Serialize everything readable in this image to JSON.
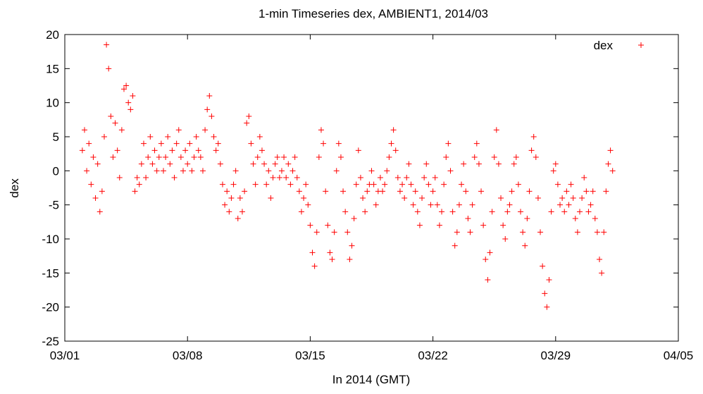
{
  "chart_data": {
    "type": "scatter",
    "title": "1-min Timeseries dex, AMBIENT1, 2014/03",
    "xlabel": "In 2014 (GMT)",
    "ylabel": "dex",
    "xlim": [
      "2014-03-01",
      "2014-04-05"
    ],
    "ylim": [
      -25,
      20
    ],
    "xticks": [
      {
        "date": "2014-03-01",
        "label": "03/01"
      },
      {
        "date": "2014-03-08",
        "label": "03/08"
      },
      {
        "date": "2014-03-15",
        "label": "03/15"
      },
      {
        "date": "2014-03-22",
        "label": "03/22"
      },
      {
        "date": "2014-03-29",
        "label": "03/29"
      },
      {
        "date": "2014-04-05",
        "label": "04/05"
      }
    ],
    "yticks": [
      20,
      15,
      10,
      5,
      0,
      -5,
      -10,
      -15,
      -20,
      -25
    ],
    "grid": false,
    "legend": "top-right",
    "series": [
      {
        "name": "dex",
        "color": "#ff0000",
        "marker": "plus",
        "points": [
          [
            "2014-03-02 00:00",
            3
          ],
          [
            "2014-03-02 03:00",
            6
          ],
          [
            "2014-03-02 06:00",
            0
          ],
          [
            "2014-03-02 09:00",
            4
          ],
          [
            "2014-03-02 12:00",
            -2
          ],
          [
            "2014-03-02 15:00",
            2
          ],
          [
            "2014-03-02 18:00",
            -4
          ],
          [
            "2014-03-02 21:00",
            1
          ],
          [
            "2014-03-03 00:00",
            -6
          ],
          [
            "2014-03-03 03:00",
            -3
          ],
          [
            "2014-03-03 06:00",
            5
          ],
          [
            "2014-03-03 09:00",
            18.5
          ],
          [
            "2014-03-03 12:00",
            15
          ],
          [
            "2014-03-03 15:00",
            8
          ],
          [
            "2014-03-03 18:00",
            2
          ],
          [
            "2014-03-03 21:00",
            7
          ],
          [
            "2014-03-04 00:00",
            3
          ],
          [
            "2014-03-04 03:00",
            -1
          ],
          [
            "2014-03-04 06:00",
            6
          ],
          [
            "2014-03-04 09:00",
            12
          ],
          [
            "2014-03-04 12:00",
            12.5
          ],
          [
            "2014-03-04 15:00",
            10
          ],
          [
            "2014-03-04 18:00",
            9
          ],
          [
            "2014-03-04 21:00",
            11
          ],
          [
            "2014-03-05 00:00",
            -3
          ],
          [
            "2014-03-05 03:00",
            -1
          ],
          [
            "2014-03-05 06:00",
            -2
          ],
          [
            "2014-03-05 09:00",
            1
          ],
          [
            "2014-03-05 12:00",
            4
          ],
          [
            "2014-03-05 15:00",
            -1
          ],
          [
            "2014-03-05 18:00",
            2
          ],
          [
            "2014-03-05 21:00",
            5
          ],
          [
            "2014-03-06 00:00",
            1
          ],
          [
            "2014-03-06 03:00",
            3
          ],
          [
            "2014-03-06 06:00",
            0
          ],
          [
            "2014-03-06 09:00",
            2
          ],
          [
            "2014-03-06 12:00",
            4
          ],
          [
            "2014-03-06 15:00",
            0
          ],
          [
            "2014-03-06 18:00",
            2
          ],
          [
            "2014-03-06 21:00",
            5
          ],
          [
            "2014-03-07 00:00",
            1
          ],
          [
            "2014-03-07 03:00",
            3
          ],
          [
            "2014-03-07 06:00",
            -1
          ],
          [
            "2014-03-07 09:00",
            4
          ],
          [
            "2014-03-07 12:00",
            6
          ],
          [
            "2014-03-07 15:00",
            2
          ],
          [
            "2014-03-07 18:00",
            0
          ],
          [
            "2014-03-07 21:00",
            3
          ],
          [
            "2014-03-08 00:00",
            1
          ],
          [
            "2014-03-08 03:00",
            4
          ],
          [
            "2014-03-08 06:00",
            0
          ],
          [
            "2014-03-08 09:00",
            2
          ],
          [
            "2014-03-08 12:00",
            5
          ],
          [
            "2014-03-08 15:00",
            3
          ],
          [
            "2014-03-08 18:00",
            2
          ],
          [
            "2014-03-08 21:00",
            0
          ],
          [
            "2014-03-09 00:00",
            6
          ],
          [
            "2014-03-09 03:00",
            9
          ],
          [
            "2014-03-09 06:00",
            11
          ],
          [
            "2014-03-09 09:00",
            8
          ],
          [
            "2014-03-09 12:00",
            5
          ],
          [
            "2014-03-09 15:00",
            3
          ],
          [
            "2014-03-09 18:00",
            4
          ],
          [
            "2014-03-09 21:00",
            1
          ],
          [
            "2014-03-10 00:00",
            -2
          ],
          [
            "2014-03-10 03:00",
            -5
          ],
          [
            "2014-03-10 06:00",
            -3
          ],
          [
            "2014-03-10 09:00",
            -6
          ],
          [
            "2014-03-10 12:00",
            -4
          ],
          [
            "2014-03-10 15:00",
            -2
          ],
          [
            "2014-03-10 18:00",
            0
          ],
          [
            "2014-03-10 21:00",
            -7
          ],
          [
            "2014-03-11 00:00",
            -4
          ],
          [
            "2014-03-11 03:00",
            -6
          ],
          [
            "2014-03-11 06:00",
            -3
          ],
          [
            "2014-03-11 09:00",
            7
          ],
          [
            "2014-03-11 12:00",
            8
          ],
          [
            "2014-03-11 15:00",
            4
          ],
          [
            "2014-03-11 18:00",
            1
          ],
          [
            "2014-03-11 21:00",
            -2
          ],
          [
            "2014-03-12 00:00",
            2
          ],
          [
            "2014-03-12 03:00",
            5
          ],
          [
            "2014-03-12 06:00",
            3
          ],
          [
            "2014-03-12 09:00",
            1
          ],
          [
            "2014-03-12 12:00",
            -2
          ],
          [
            "2014-03-12 15:00",
            0
          ],
          [
            "2014-03-12 18:00",
            -4
          ],
          [
            "2014-03-12 21:00",
            -1
          ],
          [
            "2014-03-13 00:00",
            1
          ],
          [
            "2014-03-13 03:00",
            2
          ],
          [
            "2014-03-13 06:00",
            -1
          ],
          [
            "2014-03-13 09:00",
            0
          ],
          [
            "2014-03-13 12:00",
            2
          ],
          [
            "2014-03-13 15:00",
            -1
          ],
          [
            "2014-03-13 18:00",
            1
          ],
          [
            "2014-03-13 21:00",
            -2
          ],
          [
            "2014-03-14 00:00",
            0
          ],
          [
            "2014-03-14 03:00",
            2
          ],
          [
            "2014-03-14 06:00",
            -1
          ],
          [
            "2014-03-14 09:00",
            -3
          ],
          [
            "2014-03-14 12:00",
            -6
          ],
          [
            "2014-03-14 15:00",
            -4
          ],
          [
            "2014-03-14 18:00",
            -2
          ],
          [
            "2014-03-14 21:00",
            -5
          ],
          [
            "2014-03-15 00:00",
            -8
          ],
          [
            "2014-03-15 03:00",
            -12
          ],
          [
            "2014-03-15 06:00",
            -14
          ],
          [
            "2014-03-15 09:00",
            -9
          ],
          [
            "2014-03-15 12:00",
            2
          ],
          [
            "2014-03-15 15:00",
            6
          ],
          [
            "2014-03-15 18:00",
            4
          ],
          [
            "2014-03-15 21:00",
            -3
          ],
          [
            "2014-03-16 00:00",
            -8
          ],
          [
            "2014-03-16 03:00",
            -12
          ],
          [
            "2014-03-16 06:00",
            -13
          ],
          [
            "2014-03-16 09:00",
            -9
          ],
          [
            "2014-03-16 12:00",
            0
          ],
          [
            "2014-03-16 15:00",
            4
          ],
          [
            "2014-03-16 18:00",
            2
          ],
          [
            "2014-03-16 21:00",
            -3
          ],
          [
            "2014-03-17 00:00",
            -6
          ],
          [
            "2014-03-17 03:00",
            -9
          ],
          [
            "2014-03-17 06:00",
            -13
          ],
          [
            "2014-03-17 09:00",
            -11
          ],
          [
            "2014-03-17 12:00",
            -7
          ],
          [
            "2014-03-17 15:00",
            -2
          ],
          [
            "2014-03-17 18:00",
            3
          ],
          [
            "2014-03-17 21:00",
            -1
          ],
          [
            "2014-03-18 00:00",
            -4
          ],
          [
            "2014-03-18 03:00",
            -6
          ],
          [
            "2014-03-18 06:00",
            -3
          ],
          [
            "2014-03-18 09:00",
            -2
          ],
          [
            "2014-03-18 12:00",
            0
          ],
          [
            "2014-03-18 15:00",
            -2
          ],
          [
            "2014-03-18 18:00",
            -5
          ],
          [
            "2014-03-18 21:00",
            -3
          ],
          [
            "2014-03-19 00:00",
            -1
          ],
          [
            "2014-03-19 03:00",
            -3
          ],
          [
            "2014-03-19 06:00",
            -2
          ],
          [
            "2014-03-19 09:00",
            0
          ],
          [
            "2014-03-19 12:00",
            2
          ],
          [
            "2014-03-19 15:00",
            4
          ],
          [
            "2014-03-19 18:00",
            6
          ],
          [
            "2014-03-19 21:00",
            3
          ],
          [
            "2014-03-20 00:00",
            -1
          ],
          [
            "2014-03-20 03:00",
            -3
          ],
          [
            "2014-03-20 06:00",
            -2
          ],
          [
            "2014-03-20 09:00",
            -4
          ],
          [
            "2014-03-20 12:00",
            -1
          ],
          [
            "2014-03-20 15:00",
            1
          ],
          [
            "2014-03-20 18:00",
            -2
          ],
          [
            "2014-03-20 21:00",
            -5
          ],
          [
            "2014-03-21 00:00",
            -3
          ],
          [
            "2014-03-21 03:00",
            -6
          ],
          [
            "2014-03-21 06:00",
            -8
          ],
          [
            "2014-03-21 09:00",
            -4
          ],
          [
            "2014-03-21 12:00",
            -1
          ],
          [
            "2014-03-21 15:00",
            1
          ],
          [
            "2014-03-21 18:00",
            -2
          ],
          [
            "2014-03-21 21:00",
            -5
          ],
          [
            "2014-03-22 00:00",
            -3
          ],
          [
            "2014-03-22 03:00",
            -1
          ],
          [
            "2014-03-22 06:00",
            -5
          ],
          [
            "2014-03-22 09:00",
            -8
          ],
          [
            "2014-03-22 12:00",
            -6
          ],
          [
            "2014-03-22 15:00",
            -2
          ],
          [
            "2014-03-22 18:00",
            2
          ],
          [
            "2014-03-22 21:00",
            4
          ],
          [
            "2014-03-23 00:00",
            0
          ],
          [
            "2014-03-23 03:00",
            -6
          ],
          [
            "2014-03-23 06:00",
            -11
          ],
          [
            "2014-03-23 09:00",
            -9
          ],
          [
            "2014-03-23 12:00",
            -5
          ],
          [
            "2014-03-23 15:00",
            -2
          ],
          [
            "2014-03-23 18:00",
            1
          ],
          [
            "2014-03-23 21:00",
            -3
          ],
          [
            "2014-03-24 00:00",
            -7
          ],
          [
            "2014-03-24 03:00",
            -9
          ],
          [
            "2014-03-24 06:00",
            -5
          ],
          [
            "2014-03-24 09:00",
            2
          ],
          [
            "2014-03-24 12:00",
            4
          ],
          [
            "2014-03-24 15:00",
            1
          ],
          [
            "2014-03-24 18:00",
            -3
          ],
          [
            "2014-03-24 21:00",
            -8
          ],
          [
            "2014-03-25 00:00",
            -13
          ],
          [
            "2014-03-25 03:00",
            -16
          ],
          [
            "2014-03-25 06:00",
            -12
          ],
          [
            "2014-03-25 09:00",
            -6
          ],
          [
            "2014-03-25 12:00",
            2
          ],
          [
            "2014-03-25 15:00",
            6
          ],
          [
            "2014-03-25 18:00",
            1
          ],
          [
            "2014-03-25 21:00",
            -4
          ],
          [
            "2014-03-26 00:00",
            -8
          ],
          [
            "2014-03-26 03:00",
            -10
          ],
          [
            "2014-03-26 06:00",
            -6
          ],
          [
            "2014-03-26 09:00",
            -5
          ],
          [
            "2014-03-26 12:00",
            -3
          ],
          [
            "2014-03-26 15:00",
            1
          ],
          [
            "2014-03-26 18:00",
            2
          ],
          [
            "2014-03-26 21:00",
            -2
          ],
          [
            "2014-03-27 00:00",
            -6
          ],
          [
            "2014-03-27 03:00",
            -9
          ],
          [
            "2014-03-27 06:00",
            -11
          ],
          [
            "2014-03-27 09:00",
            -7
          ],
          [
            "2014-03-27 12:00",
            -3
          ],
          [
            "2014-03-27 15:00",
            3
          ],
          [
            "2014-03-27 18:00",
            5
          ],
          [
            "2014-03-27 21:00",
            2
          ],
          [
            "2014-03-28 00:00",
            -4
          ],
          [
            "2014-03-28 03:00",
            -9
          ],
          [
            "2014-03-28 06:00",
            -14
          ],
          [
            "2014-03-28 09:00",
            -18
          ],
          [
            "2014-03-28 12:00",
            -20
          ],
          [
            "2014-03-28 15:00",
            -16
          ],
          [
            "2014-03-28 18:00",
            -6
          ],
          [
            "2014-03-28 21:00",
            0
          ],
          [
            "2014-03-29 00:00",
            1
          ],
          [
            "2014-03-29 03:00",
            -2
          ],
          [
            "2014-03-29 06:00",
            -5
          ],
          [
            "2014-03-29 09:00",
            -4
          ],
          [
            "2014-03-29 12:00",
            -6
          ],
          [
            "2014-03-29 15:00",
            -3
          ],
          [
            "2014-03-29 18:00",
            -5
          ],
          [
            "2014-03-29 21:00",
            -2
          ],
          [
            "2014-03-30 00:00",
            -4
          ],
          [
            "2014-03-30 03:00",
            -7
          ],
          [
            "2014-03-30 06:00",
            -9
          ],
          [
            "2014-03-30 09:00",
            -6
          ],
          [
            "2014-03-30 12:00",
            -4
          ],
          [
            "2014-03-30 15:00",
            -1
          ],
          [
            "2014-03-30 18:00",
            -3
          ],
          [
            "2014-03-30 21:00",
            -6
          ],
          [
            "2014-03-31 00:00",
            -5
          ],
          [
            "2014-03-31 03:00",
            -3
          ],
          [
            "2014-03-31 06:00",
            -7
          ],
          [
            "2014-03-31 09:00",
            -9
          ],
          [
            "2014-03-31 12:00",
            -13
          ],
          [
            "2014-03-31 15:00",
            -15
          ],
          [
            "2014-03-31 18:00",
            -9
          ],
          [
            "2014-03-31 21:00",
            -3
          ],
          [
            "2014-04-01 00:00",
            1
          ],
          [
            "2014-04-01 03:00",
            3
          ],
          [
            "2014-04-01 06:00",
            0
          ]
        ]
      }
    ]
  }
}
